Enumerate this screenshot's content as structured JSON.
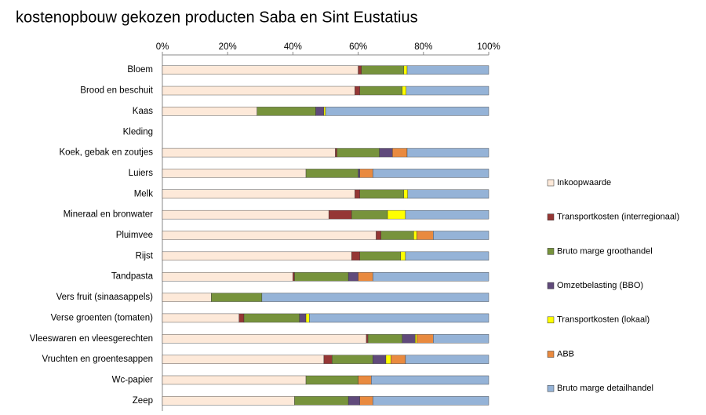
{
  "chart_data": {
    "type": "stacked-bar-horizontal",
    "title": "kostenopbouw gekozen producten Saba en Sint Eustatius",
    "categories": [
      "Bloem",
      "Brood en beschuit",
      "Kaas",
      "Kleding",
      "Koek, gebak en zoutjes",
      "Luiers",
      "Melk",
      "Mineraal en bronwater",
      "Pluimvee",
      "Rijst",
      "Tandpasta",
      "Vers fruit (sinaasappels)",
      "Verse groenten (tomaten)",
      "Vleeswaren en vleesgerechten",
      "Vruchten en groentesappen",
      "Wc-papier",
      "Zeep"
    ],
    "series": [
      {
        "name": "Inkoopwaarde",
        "color": "#fde9d9",
        "values": [
          60,
          59,
          29,
          null,
          53,
          44,
          59,
          51,
          65.5,
          58,
          40,
          15,
          23.5,
          62.5,
          49.5,
          44,
          40.5
        ]
      },
      {
        "name": "Transportkosten (interregionaal)",
        "color": "#953735",
        "values": [
          1,
          1.5,
          0,
          null,
          0.5,
          0,
          1.5,
          7,
          1.5,
          2.5,
          0.5,
          0,
          1.5,
          0.5,
          2.5,
          0,
          0
        ]
      },
      {
        "name": "Bruto marge groothandel",
        "color": "#77933c",
        "values": [
          13,
          13,
          18,
          null,
          13,
          16,
          13.5,
          11,
          10,
          12.5,
          16.5,
          15.5,
          17,
          10.5,
          12.5,
          16,
          16.5
        ]
      },
      {
        "name": "Omzetbelasting (BBO)",
        "color": "#604a7b",
        "values": [
          0,
          0,
          2.5,
          null,
          4,
          0.5,
          0,
          0,
          0,
          0,
          3,
          0,
          2,
          4,
          4,
          0,
          3.5
        ]
      },
      {
        "name": "Transportkosten (lokaal)",
        "color": "#ffff00",
        "values": [
          1,
          1.2,
          0.5,
          null,
          0,
          0,
          1.2,
          5.5,
          1,
          1.5,
          0,
          0,
          1,
          0.5,
          1.5,
          0,
          0
        ]
      },
      {
        "name": "ABB",
        "color": "#e98a3f",
        "values": [
          0,
          0,
          0,
          null,
          4.5,
          4,
          0,
          0,
          5,
          0,
          4.5,
          0,
          0,
          5,
          4.5,
          4,
          4
        ]
      },
      {
        "name": "Bruto marge detailhandel",
        "color": "#95b3d7",
        "values": [
          25,
          25.3,
          50,
          null,
          25,
          35.5,
          24.8,
          25.5,
          17,
          25.5,
          35.5,
          69.5,
          55,
          17,
          25.5,
          36,
          35.5
        ]
      }
    ],
    "xlim": [
      0,
      100
    ],
    "xticks": [
      {
        "value": 0,
        "label": "0%"
      },
      {
        "value": 20,
        "label": "20%"
      },
      {
        "value": 40,
        "label": "40%"
      },
      {
        "value": 60,
        "label": "60%"
      },
      {
        "value": 80,
        "label": "80%"
      },
      {
        "value": 100,
        "label": "100%"
      }
    ],
    "legend": "right"
  }
}
